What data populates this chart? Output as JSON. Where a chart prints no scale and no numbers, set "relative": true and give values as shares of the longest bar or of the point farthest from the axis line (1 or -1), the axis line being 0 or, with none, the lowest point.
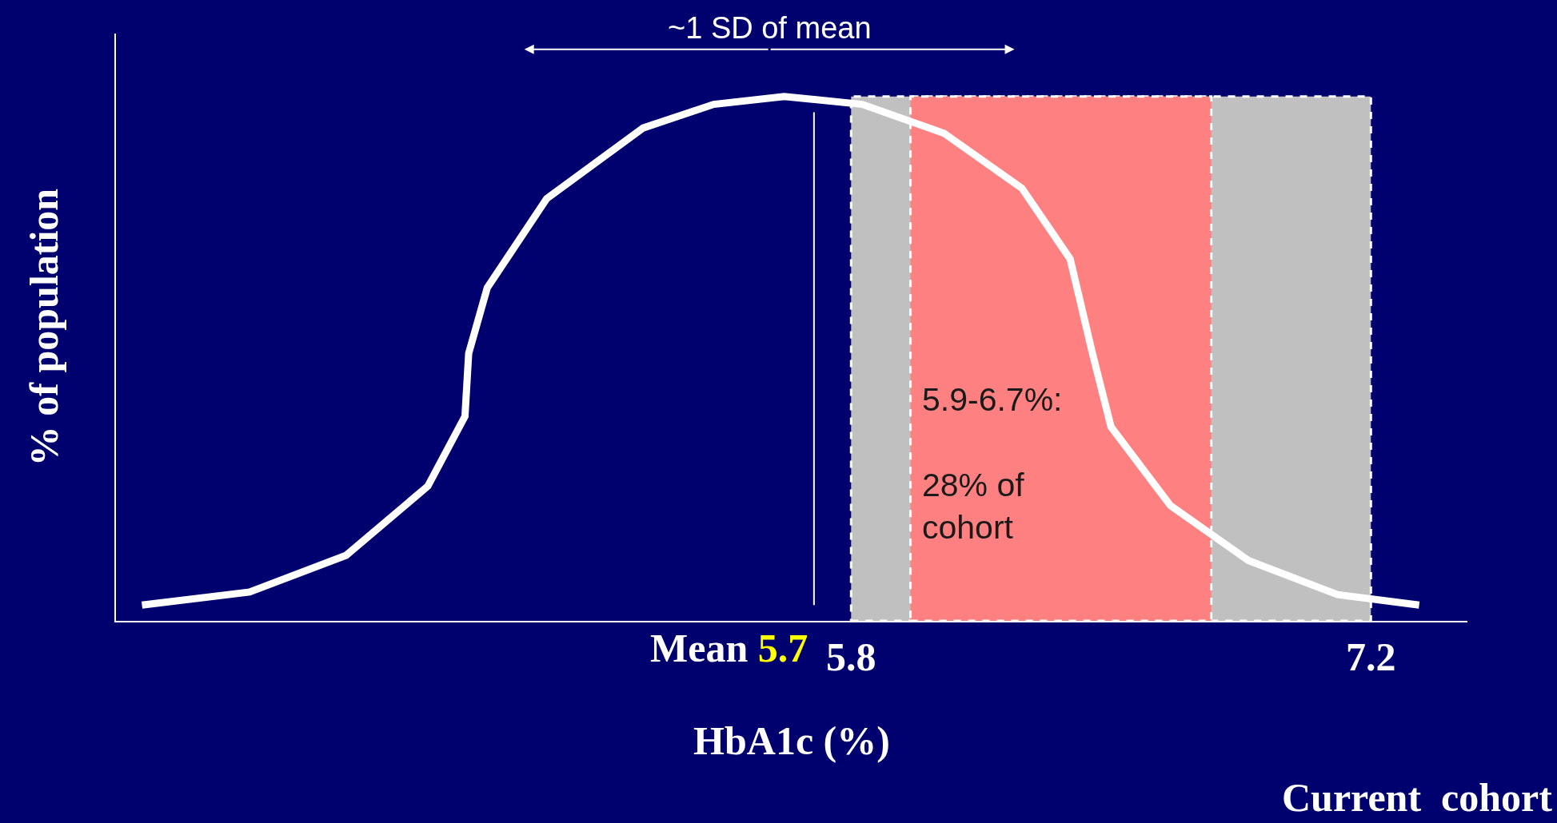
{
  "chart_data": {
    "type": "line",
    "relative": true,
    "xlabel": "HbA1c (%)",
    "ylabel": "% of population",
    "x": [
      3.89,
      4.18,
      4.44,
      4.66,
      4.76,
      4.77,
      4.82,
      4.98,
      5.24,
      5.43,
      5.62,
      5.83,
      6.05,
      6.26,
      6.39,
      6.45,
      6.5,
      6.66,
      6.87,
      7.11,
      7.33
    ],
    "series": [
      {
        "color": "#ffffff",
        "values": [
          0.03,
          0.055,
          0.125,
          0.257,
          0.39,
          0.51,
          0.635,
          0.805,
          0.94,
          0.985,
          1,
          0.985,
          0.93,
          0.825,
          0.69,
          0.51,
          0.37,
          0.22,
          0.115,
          0.05,
          0.03
        ]
      }
    ],
    "xlim": [
      3.82,
      7.46
    ],
    "xticks": [
      5.8,
      7.2
    ],
    "marker": "none",
    "line_style": "solid",
    "grid": false,
    "ref_lines": [
      {
        "axis": "x",
        "value": 5.7,
        "label": "Mean 5.7",
        "color": "#ffffff"
      }
    ],
    "bands": [
      {
        "axis": "x",
        "from": 5.8,
        "to": 7.2,
        "color": "#c0c0c0"
      },
      {
        "axis": "x",
        "from": 5.96,
        "to": 6.77,
        "color": "#ff8080",
        "label": "5.9-6.7%:\n\n28% of\ncohort"
      }
    ],
    "annotations": [
      "~1 SD of mean",
      "Current  cohort"
    ]
  }
}
